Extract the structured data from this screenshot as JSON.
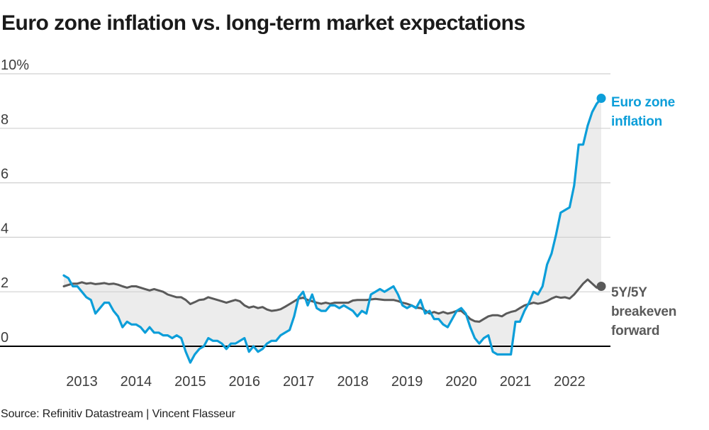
{
  "title": "Euro zone inflation vs. long-term market expectations",
  "source": "Source: Refinitiv Datastream | Vincent Flasseur",
  "annotations": {
    "inflation_label": "Euro zone inflation",
    "breakeven_label": "5Y/5Y breakeven forward"
  },
  "colors": {
    "inflation_line": "#0c9ed9",
    "breakeven_line": "#5a5a5a",
    "fill_between": "#ececec",
    "gridline": "#d0d0d0",
    "zero_line": "#000000",
    "axis_text": "#3d3d3d",
    "title_text": "#1a1a1a",
    "background": "#ffffff"
  },
  "chart_data": {
    "type": "line",
    "title": "Euro zone inflation vs. long-term market expectations",
    "xlabel": "",
    "ylabel": "%",
    "frequency": "monthly",
    "x_start": "2012-09",
    "x_end": "2022-08",
    "ylim": [
      -1,
      10.4
    ],
    "grid": "horizontal",
    "legend_position": "right-end-labels",
    "fill_between_series": true,
    "y_axis": {
      "ticks": [
        {
          "value": 10,
          "label": "10%"
        },
        {
          "value": 8,
          "label": "8"
        },
        {
          "value": 6,
          "label": "6"
        },
        {
          "value": 4,
          "label": "4"
        },
        {
          "value": 2,
          "label": "2"
        },
        {
          "value": 0,
          "label": "0"
        }
      ]
    },
    "x_axis": {
      "tick_labels": [
        "2013",
        "2014",
        "2015",
        "2016",
        "2017",
        "2018",
        "2019",
        "2020",
        "2021",
        "2022"
      ],
      "tick_years": [
        2013,
        2014,
        2015,
        2016,
        2017,
        2018,
        2019,
        2020,
        2021,
        2022
      ]
    },
    "series": [
      {
        "name": "Euro zone inflation",
        "color": "#0c9ed9",
        "end_dot": true,
        "end_value": 9.1,
        "values": [
          2.6,
          2.5,
          2.2,
          2.2,
          2.0,
          1.8,
          1.7,
          1.2,
          1.4,
          1.6,
          1.6,
          1.3,
          1.1,
          0.7,
          0.9,
          0.8,
          0.8,
          0.7,
          0.5,
          0.7,
          0.5,
          0.5,
          0.4,
          0.4,
          0.3,
          0.4,
          0.3,
          -0.2,
          -0.6,
          -0.3,
          -0.1,
          0.0,
          0.3,
          0.2,
          0.2,
          0.1,
          -0.1,
          0.1,
          0.1,
          0.2,
          0.3,
          -0.2,
          0.0,
          -0.2,
          -0.1,
          0.1,
          0.2,
          0.2,
          0.4,
          0.5,
          0.6,
          1.1,
          1.8,
          2.0,
          1.5,
          1.9,
          1.4,
          1.3,
          1.3,
          1.5,
          1.5,
          1.4,
          1.5,
          1.4,
          1.3,
          1.1,
          1.3,
          1.2,
          1.9,
          2.0,
          2.1,
          2.0,
          2.1,
          2.2,
          1.9,
          1.5,
          1.4,
          1.5,
          1.4,
          1.7,
          1.2,
          1.3,
          1.0,
          1.0,
          0.8,
          0.7,
          1.0,
          1.3,
          1.4,
          1.2,
          0.7,
          0.3,
          0.1,
          0.3,
          0.4,
          -0.2,
          -0.3,
          -0.3,
          -0.3,
          -0.3,
          0.9,
          0.9,
          1.3,
          1.6,
          2.0,
          1.9,
          2.2,
          3.0,
          3.4,
          4.1,
          4.9,
          5.0,
          5.1,
          5.9,
          7.4,
          7.4,
          8.1,
          8.6,
          8.9,
          9.1
        ]
      },
      {
        "name": "5Y/5Y breakeven forward",
        "color": "#5a5a5a",
        "end_dot": true,
        "end_value": 2.2,
        "values": [
          2.2,
          2.25,
          2.3,
          2.3,
          2.35,
          2.3,
          2.32,
          2.28,
          2.3,
          2.32,
          2.28,
          2.3,
          2.26,
          2.2,
          2.15,
          2.2,
          2.2,
          2.15,
          2.1,
          2.05,
          2.1,
          2.05,
          2.0,
          1.9,
          1.85,
          1.8,
          1.8,
          1.7,
          1.55,
          1.62,
          1.7,
          1.72,
          1.8,
          1.75,
          1.7,
          1.65,
          1.6,
          1.65,
          1.7,
          1.65,
          1.5,
          1.42,
          1.46,
          1.4,
          1.44,
          1.35,
          1.3,
          1.32,
          1.36,
          1.45,
          1.55,
          1.65,
          1.75,
          1.78,
          1.7,
          1.65,
          1.6,
          1.56,
          1.6,
          1.56,
          1.6,
          1.6,
          1.6,
          1.6,
          1.68,
          1.7,
          1.7,
          1.7,
          1.72,
          1.74,
          1.72,
          1.7,
          1.7,
          1.7,
          1.66,
          1.6,
          1.56,
          1.5,
          1.42,
          1.4,
          1.32,
          1.2,
          1.26,
          1.2,
          1.26,
          1.2,
          1.24,
          1.3,
          1.3,
          1.16,
          1.0,
          0.92,
          0.9,
          1.0,
          1.1,
          1.14,
          1.14,
          1.1,
          1.2,
          1.26,
          1.3,
          1.4,
          1.5,
          1.55,
          1.6,
          1.56,
          1.6,
          1.66,
          1.75,
          1.82,
          1.78,
          1.8,
          1.75,
          1.9,
          2.1,
          2.3,
          2.45,
          2.3,
          2.15,
          2.2
        ]
      }
    ]
  }
}
